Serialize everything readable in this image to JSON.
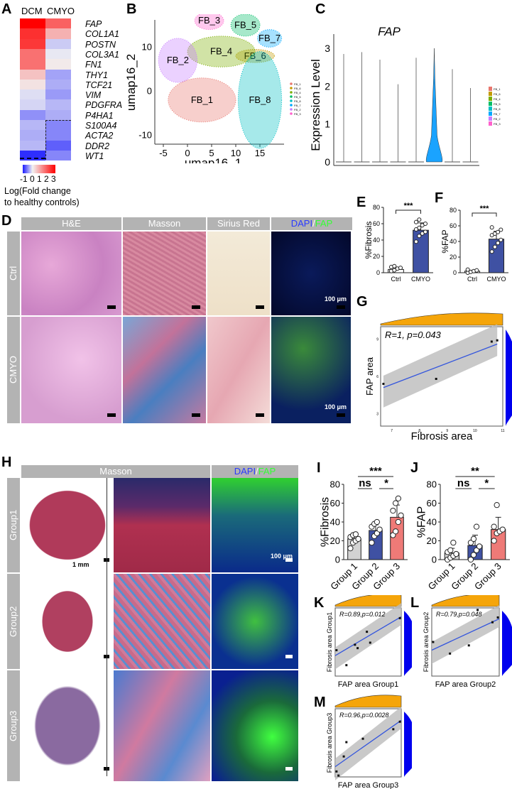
{
  "panels": {
    "A": "A",
    "B": "B",
    "C": "C",
    "D": "D",
    "E": "E",
    "F": "F",
    "G": "G",
    "H": "H",
    "I": "I",
    "J": "J",
    "K": "K",
    "L": "L",
    "M": "M"
  },
  "heatmap": {
    "columns": [
      "DCM",
      "CMYO"
    ],
    "genes": [
      "FAP",
      "COL1A1",
      "POSTN",
      "COL3A1",
      "FN1",
      "THY1",
      "TCF21",
      "VIM",
      "PDGFRA",
      "P4HA1",
      "S100A4",
      "ACTA2",
      "DDR2",
      "WT1"
    ],
    "values": [
      [
        3,
        1.8
      ],
      [
        2.4,
        0.8
      ],
      [
        2.3,
        -0.4
      ],
      [
        1.6,
        -0.1
      ],
      [
        1.6,
        0.1
      ],
      [
        0.6,
        -0.8
      ],
      [
        0.2,
        -0.7
      ],
      [
        -0.2,
        -0.9
      ],
      [
        -0.3,
        -0.6
      ],
      [
        -1,
        -0.7
      ],
      [
        -0.6,
        -1.1
      ],
      [
        -0.7,
        -1.1
      ],
      [
        -0.6,
        -1.5
      ],
      [
        -2,
        -1.1
      ]
    ],
    "colorbar_ticks": "-1 0 1 2 3",
    "colorbar_label_1": "Log(Fold change",
    "colorbar_label_2": "to healthy controls)",
    "colors": {
      "low": "#1a1aff",
      "mid": "#f2f2f2",
      "high": "#ff0000"
    }
  },
  "umap": {
    "xlabel": "umap16_1",
    "ylabel": "umap16_2",
    "xticks": [
      "-5",
      "0",
      "5",
      "10",
      "15"
    ],
    "yticks": [
      "10",
      "0",
      "-10"
    ],
    "clusters": [
      {
        "name": "FB_1",
        "color": "#e8766d"
      },
      {
        "name": "FB_6",
        "color": "#c49a00"
      },
      {
        "name": "FB_4",
        "color": "#7cae00"
      },
      {
        "name": "FB_5",
        "color": "#00be67"
      },
      {
        "name": "FB_8",
        "color": "#00bfc4"
      },
      {
        "name": "FB_7",
        "color": "#00a9ff"
      },
      {
        "name": "FB_2",
        "color": "#c77cff"
      },
      {
        "name": "FB_3",
        "color": "#ff61cc"
      }
    ]
  },
  "chart_data": [
    {
      "id": "C",
      "type": "violin",
      "title": "FAP",
      "ylabel": "Expression Level",
      "ylim": [
        0,
        3
      ],
      "yticks": [
        "0",
        "1",
        "2",
        "3"
      ],
      "categories": [
        "FB_1",
        "FB_6",
        "FB_4",
        "FB_5",
        "FB_8",
        "FB_7",
        "FB_2",
        "FB_3"
      ],
      "max": [
        2.85,
        2.9,
        2.7,
        2.05,
        2.75,
        3.0,
        2.45,
        1.95
      ],
      "highlight": "FB_7"
    },
    {
      "id": "E",
      "type": "bar",
      "ylabel": "%Fibrosis",
      "ylim": [
        0,
        80
      ],
      "yticks": [
        "0",
        "20",
        "40",
        "60",
        "80"
      ],
      "categories": [
        "Ctrl",
        "CMYO"
      ],
      "values": [
        4,
        52
      ],
      "sd": [
        2,
        9
      ],
      "colors": [
        "#ffffff",
        "#3f51a3"
      ],
      "points": [
        [
          2,
          3,
          5,
          6,
          7,
          8
        ],
        [
          38,
          45,
          48,
          50,
          53,
          55,
          58,
          60,
          62,
          65
        ]
      ],
      "sig": [
        {
          "label": "***",
          "from": 0,
          "to": 1,
          "level": 0
        }
      ]
    },
    {
      "id": "F",
      "type": "bar",
      "ylabel": "%FAP",
      "ylim": [
        0,
        80
      ],
      "yticks": [
        "0",
        "20",
        "40",
        "60",
        "80"
      ],
      "categories": [
        "Ctrl",
        "CMYO"
      ],
      "values": [
        2,
        43
      ],
      "sd": [
        1,
        10
      ],
      "colors": [
        "#ffffff",
        "#3f51a3"
      ],
      "points": [
        [
          0,
          1,
          2,
          3,
          4
        ],
        [
          27,
          33,
          38,
          42,
          48,
          50,
          52,
          55,
          58
        ]
      ],
      "sig": [
        {
          "label": "***",
          "from": 0,
          "to": 1,
          "level": 0
        }
      ]
    },
    {
      "id": "G",
      "type": "scatter",
      "xlabel": "Fibrosis area",
      "ylabel": "FAP area",
      "annotation": "R=1, p=0.043",
      "xlim": [
        6.6,
        11
      ],
      "ylim": [
        2,
        10
      ],
      "xticks": [
        "7",
        "8",
        "9",
        "10",
        "11"
      ],
      "yticks": [
        "3",
        "6",
        "9"
      ],
      "points": [
        [
          6.7,
          5.4
        ],
        [
          8.6,
          5.8
        ],
        [
          10.6,
          8.8
        ],
        [
          10.8,
          8.9
        ]
      ],
      "fit": [
        [
          6.7,
          5.1
        ],
        [
          10.8,
          8.6
        ]
      ]
    },
    {
      "id": "I",
      "type": "bar",
      "ylabel": "%Fibrosis",
      "ylim": [
        0,
        80
      ],
      "yticks": [
        "0",
        "20",
        "40",
        "60",
        "80"
      ],
      "categories": [
        "Group 1",
        "Group 2",
        "Group 3"
      ],
      "values": [
        22,
        31,
        45
      ],
      "sd": [
        4,
        6,
        13
      ],
      "colors": [
        "#d3d3d3",
        "#3f51a3",
        "#ee7a77"
      ],
      "points": [
        [
          12,
          18,
          20,
          22,
          24,
          26,
          27
        ],
        [
          18,
          25,
          28,
          32,
          35,
          38,
          40
        ],
        [
          26,
          30,
          40,
          47,
          52,
          60,
          65
        ]
      ],
      "sig": [
        {
          "label": "***",
          "from": 0,
          "to": 2,
          "level": 1
        },
        {
          "label": "ns",
          "from": 0,
          "to": 1,
          "level": 0
        },
        {
          "label": "*",
          "from": 1,
          "to": 2,
          "level": 0
        }
      ]
    },
    {
      "id": "J",
      "type": "bar",
      "ylabel": "%FAP",
      "ylim": [
        0,
        80
      ],
      "yticks": [
        "0",
        "20",
        "40",
        "60",
        "80"
      ],
      "categories": [
        "Group 1",
        "Group 2",
        "Group 3"
      ],
      "values": [
        7,
        15,
        32
      ],
      "sd": [
        5,
        11,
        13
      ],
      "colors": [
        "#d3d3d3",
        "#3f51a3",
        "#ee7a77"
      ],
      "points": [
        [
          0,
          2,
          4,
          6,
          8,
          10,
          18
        ],
        [
          0,
          5,
          10,
          14,
          18,
          22,
          35
        ],
        [
          20,
          28,
          30,
          32,
          35,
          58
        ]
      ],
      "sig": [
        {
          "label": "**",
          "from": 0,
          "to": 2,
          "level": 1
        },
        {
          "label": "ns",
          "from": 0,
          "to": 1,
          "level": 0
        },
        {
          "label": "*",
          "from": 1,
          "to": 2,
          "level": 0
        }
      ]
    },
    {
      "id": "K",
      "type": "scatter",
      "xlabel": "FAP area Group1",
      "ylabel": "Fibrosis area Group1",
      "annotation": "R=0.89,p=0.012",
      "xlim": [
        0,
        1
      ],
      "ylim": [
        0,
        1
      ],
      "points": [
        [
          0.02,
          0.38
        ],
        [
          0.17,
          0.16
        ],
        [
          0.3,
          0.46
        ],
        [
          0.34,
          0.41
        ],
        [
          0.48,
          0.65
        ],
        [
          0.53,
          0.49
        ],
        [
          0.98,
          0.85
        ]
      ],
      "fit": [
        [
          0,
          0.3
        ],
        [
          1,
          0.87
        ]
      ]
    },
    {
      "id": "L",
      "type": "scatter",
      "xlabel": "FAP area Group2",
      "ylabel": "Fibrosis area Group2",
      "annotation": "R=0.79,p=0.048",
      "xlim": [
        0,
        1
      ],
      "ylim": [
        0,
        1
      ],
      "points": [
        [
          0.02,
          0.5
        ],
        [
          0.27,
          0.33
        ],
        [
          0.55,
          0.45
        ],
        [
          0.68,
          0.97
        ],
        [
          0.9,
          0.79
        ],
        [
          0.98,
          0.86
        ]
      ],
      "fit": [
        [
          0,
          0.38
        ],
        [
          1,
          0.84
        ]
      ]
    },
    {
      "id": "M",
      "type": "scatter",
      "xlabel": "FAP area Group3",
      "ylabel": "Fibrosis area Group3",
      "annotation": "R=0.96,p=0.0028",
      "xlim": [
        0,
        1
      ],
      "ylim": [
        0,
        1
      ],
      "points": [
        [
          0.02,
          0.08
        ],
        [
          0.05,
          0.02
        ],
        [
          0.13,
          0.3
        ],
        [
          0.17,
          0.51
        ],
        [
          0.42,
          0.56
        ],
        [
          0.88,
          0.7
        ],
        [
          0.98,
          0.81
        ]
      ],
      "fit": [
        [
          0,
          0.15
        ],
        [
          1,
          0.83
        ]
      ]
    }
  ],
  "histology_D": {
    "columns": [
      "H&E",
      "Masson",
      "Sirius Red"
    ],
    "dapi": "DAPI",
    "slash": "/",
    "fap": "FAP",
    "rows": [
      "Ctrl",
      "CMYO"
    ],
    "scalebar": "100 μm"
  },
  "histology_H": {
    "columns": [
      "Masson"
    ],
    "dapi": "DAPI",
    "slash": "/",
    "fap": "FAP",
    "rows": [
      "Group1",
      "Group2",
      "Group3"
    ],
    "scale_whole": "1 mm",
    "scale_zoom": "100 μm"
  }
}
